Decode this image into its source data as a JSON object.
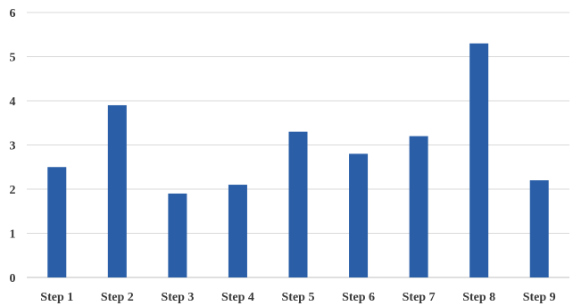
{
  "chart_data": {
    "type": "bar",
    "title": "",
    "xlabel": "",
    "ylabel": "",
    "categories": [
      "Step 1",
      "Step 2",
      "Step 3",
      "Step 4",
      "Step 5",
      "Step 6",
      "Step 7",
      "Step 8",
      "Step 9"
    ],
    "values": [
      2.5,
      3.9,
      1.9,
      2.1,
      3.3,
      2.8,
      3.2,
      5.3,
      2.2
    ],
    "ylim": [
      0,
      6
    ],
    "yticks": [
      0,
      1,
      2,
      3,
      4,
      5,
      6
    ],
    "grid": true,
    "legend": "none",
    "bar_color": "#2a5fa8",
    "grid_color": "#d9d9d9",
    "axis_color": "#bfbfbf"
  }
}
